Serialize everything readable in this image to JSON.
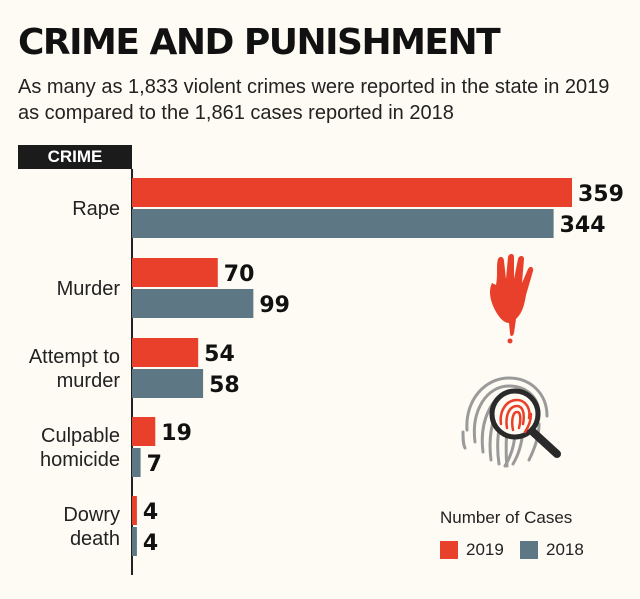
{
  "colors": {
    "y2019": "#e8402a",
    "y2018": "#5d7785",
    "axis": "#222222"
  },
  "header": {
    "crime_label": "CRIME"
  },
  "legend": {
    "title": "Number of Cases",
    "items": [
      "2019",
      "2018"
    ]
  },
  "icons": [
    "bloody-hand-icon",
    "fingerprint-magnifier-icon"
  ],
  "chart_data": {
    "type": "bar",
    "orientation": "horizontal",
    "title": "CRIME AND PUNISHMENT",
    "subtitle": "As many as 1,833 violent crimes were reported in the state in 2019 as compared to the 1,861 cases reported in 2018",
    "categories": [
      [
        "Rape"
      ],
      [
        "Murder"
      ],
      [
        "Attempt to",
        "murder"
      ],
      [
        "Culpable",
        "homicide"
      ],
      [
        "Dowry",
        "death"
      ]
    ],
    "series": [
      {
        "name": "2019",
        "values": [
          359,
          70,
          54,
          19,
          4
        ]
      },
      {
        "name": "2018",
        "values": [
          344,
          99,
          58,
          7,
          4
        ]
      }
    ],
    "xlim": [
      0,
      359
    ],
    "grid": false,
    "legend_position": "bottom-right"
  }
}
